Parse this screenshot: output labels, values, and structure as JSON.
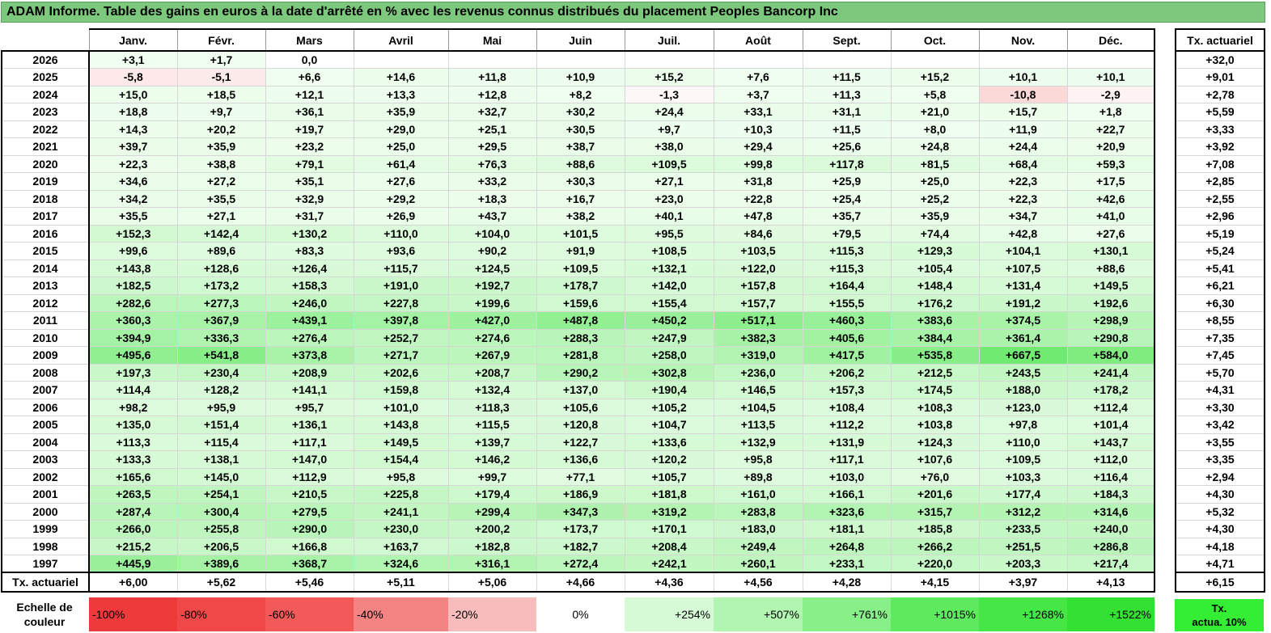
{
  "title": "ADAM Informe. Table des gains en euros à la date d'arrêté en % avec les revenus connus distribués du placement Peoples Bancorp Inc",
  "chart_data": {
    "type": "table",
    "months": [
      "Janv.",
      "Févr.",
      "Mars",
      "Avril",
      "Mai",
      "Juin",
      "Juil.",
      "Août",
      "Sept.",
      "Oct.",
      "Nov.",
      "Déc."
    ],
    "side_header": "Tx. actuariel",
    "rows": [
      {
        "year": "2026",
        "values": [
          "+3,1",
          "+1,7",
          "0,0",
          "",
          "",
          "",
          "",
          "",
          "",
          "",
          "",
          ""
        ],
        "tx": "+32,0"
      },
      {
        "year": "2025",
        "values": [
          "-5,8",
          "-5,1",
          "+6,6",
          "+14,6",
          "+11,8",
          "+10,9",
          "+15,2",
          "+7,6",
          "+11,5",
          "+15,2",
          "+10,1",
          "+10,1"
        ],
        "tx": "+9,01"
      },
      {
        "year": "2024",
        "values": [
          "+15,0",
          "+18,5",
          "+12,1",
          "+13,3",
          "+12,8",
          "+8,2",
          "-1,3",
          "+3,7",
          "+11,3",
          "+5,8",
          "-10,8",
          "-2,9"
        ],
        "tx": "+2,78"
      },
      {
        "year": "2023",
        "values": [
          "+18,8",
          "+9,7",
          "+36,1",
          "+35,9",
          "+32,7",
          "+30,2",
          "+24,4",
          "+33,1",
          "+31,1",
          "+21,0",
          "+15,7",
          "+1,8"
        ],
        "tx": "+5,59"
      },
      {
        "year": "2022",
        "values": [
          "+14,3",
          "+20,2",
          "+19,7",
          "+29,0",
          "+25,1",
          "+30,5",
          "+9,7",
          "+10,3",
          "+11,5",
          "+8,0",
          "+11,9",
          "+22,7"
        ],
        "tx": "+3,33"
      },
      {
        "year": "2021",
        "values": [
          "+39,7",
          "+35,9",
          "+23,2",
          "+25,0",
          "+29,5",
          "+38,7",
          "+38,0",
          "+29,4",
          "+25,6",
          "+24,8",
          "+24,4",
          "+20,9"
        ],
        "tx": "+3,92"
      },
      {
        "year": "2020",
        "values": [
          "+22,3",
          "+38,8",
          "+79,1",
          "+61,4",
          "+76,3",
          "+88,6",
          "+109,5",
          "+99,8",
          "+117,8",
          "+81,5",
          "+68,4",
          "+59,3"
        ],
        "tx": "+7,08"
      },
      {
        "year": "2019",
        "values": [
          "+34,6",
          "+27,2",
          "+35,1",
          "+27,6",
          "+33,2",
          "+30,3",
          "+27,1",
          "+31,8",
          "+25,9",
          "+25,0",
          "+22,3",
          "+17,5"
        ],
        "tx": "+2,85"
      },
      {
        "year": "2018",
        "values": [
          "+34,2",
          "+35,5",
          "+32,9",
          "+29,2",
          "+18,3",
          "+16,7",
          "+23,0",
          "+22,8",
          "+25,4",
          "+25,2",
          "+22,3",
          "+42,6"
        ],
        "tx": "+2,55"
      },
      {
        "year": "2017",
        "values": [
          "+35,5",
          "+27,1",
          "+31,7",
          "+26,9",
          "+43,7",
          "+38,2",
          "+40,1",
          "+47,8",
          "+35,7",
          "+35,9",
          "+34,7",
          "+41,0"
        ],
        "tx": "+2,96"
      },
      {
        "year": "2016",
        "values": [
          "+152,3",
          "+142,4",
          "+130,2",
          "+110,0",
          "+104,0",
          "+101,5",
          "+95,5",
          "+84,6",
          "+79,5",
          "+74,4",
          "+42,8",
          "+27,6"
        ],
        "tx": "+5,19"
      },
      {
        "year": "2015",
        "values": [
          "+99,6",
          "+89,6",
          "+83,3",
          "+93,6",
          "+90,2",
          "+91,9",
          "+108,5",
          "+103,5",
          "+115,3",
          "+129,3",
          "+104,1",
          "+130,1"
        ],
        "tx": "+5,24"
      },
      {
        "year": "2014",
        "values": [
          "+143,8",
          "+128,6",
          "+126,4",
          "+115,7",
          "+124,5",
          "+109,5",
          "+132,1",
          "+122,0",
          "+115,3",
          "+105,4",
          "+107,5",
          "+88,6"
        ],
        "tx": "+5,41"
      },
      {
        "year": "2013",
        "values": [
          "+182,5",
          "+173,2",
          "+158,3",
          "+191,0",
          "+192,7",
          "+178,7",
          "+142,0",
          "+157,8",
          "+164,4",
          "+148,4",
          "+131,4",
          "+149,5"
        ],
        "tx": "+6,21"
      },
      {
        "year": "2012",
        "values": [
          "+282,6",
          "+277,3",
          "+246,0",
          "+227,8",
          "+199,6",
          "+159,6",
          "+155,4",
          "+157,7",
          "+155,5",
          "+176,2",
          "+191,2",
          "+192,6"
        ],
        "tx": "+6,30"
      },
      {
        "year": "2011",
        "values": [
          "+360,3",
          "+367,9",
          "+439,1",
          "+397,8",
          "+427,0",
          "+487,8",
          "+450,2",
          "+517,1",
          "+460,3",
          "+383,6",
          "+374,5",
          "+298,9"
        ],
        "tx": "+8,55"
      },
      {
        "year": "2010",
        "values": [
          "+394,9",
          "+336,3",
          "+276,4",
          "+252,7",
          "+274,6",
          "+288,3",
          "+247,9",
          "+382,3",
          "+405,6",
          "+384,4",
          "+361,4",
          "+290,8"
        ],
        "tx": "+7,35"
      },
      {
        "year": "2009",
        "values": [
          "+495,6",
          "+541,8",
          "+373,8",
          "+271,7",
          "+267,9",
          "+281,8",
          "+258,0",
          "+319,0",
          "+417,5",
          "+535,8",
          "+667,5",
          "+584,0"
        ],
        "tx": "+7,45"
      },
      {
        "year": "2008",
        "values": [
          "+197,3",
          "+230,4",
          "+208,9",
          "+202,6",
          "+208,7",
          "+290,2",
          "+302,8",
          "+236,0",
          "+206,2",
          "+212,5",
          "+243,5",
          "+241,4"
        ],
        "tx": "+5,70"
      },
      {
        "year": "2007",
        "values": [
          "+114,4",
          "+128,2",
          "+141,1",
          "+159,8",
          "+132,4",
          "+137,0",
          "+190,4",
          "+146,5",
          "+157,3",
          "+174,5",
          "+188,0",
          "+178,2"
        ],
        "tx": "+4,31"
      },
      {
        "year": "2006",
        "values": [
          "+98,2",
          "+95,9",
          "+95,7",
          "+101,0",
          "+118,3",
          "+105,6",
          "+105,2",
          "+104,5",
          "+108,4",
          "+108,3",
          "+123,0",
          "+112,4"
        ],
        "tx": "+3,30"
      },
      {
        "year": "2005",
        "values": [
          "+135,0",
          "+151,4",
          "+136,1",
          "+143,8",
          "+115,5",
          "+120,8",
          "+104,7",
          "+113,5",
          "+112,2",
          "+103,8",
          "+97,8",
          "+101,4"
        ],
        "tx": "+3,42"
      },
      {
        "year": "2004",
        "values": [
          "+113,3",
          "+115,4",
          "+117,1",
          "+149,5",
          "+139,7",
          "+122,7",
          "+133,6",
          "+132,9",
          "+131,9",
          "+124,3",
          "+110,0",
          "+143,7"
        ],
        "tx": "+3,55"
      },
      {
        "year": "2003",
        "values": [
          "+133,3",
          "+138,1",
          "+147,0",
          "+154,4",
          "+146,2",
          "+136,6",
          "+120,2",
          "+95,8",
          "+117,1",
          "+107,6",
          "+109,5",
          "+112,0"
        ],
        "tx": "+3,35"
      },
      {
        "year": "2002",
        "values": [
          "+165,6",
          "+145,0",
          "+112,9",
          "+95,8",
          "+99,7",
          "+77,1",
          "+105,7",
          "+89,8",
          "+103,0",
          "+76,0",
          "+103,3",
          "+116,4"
        ],
        "tx": "+2,94"
      },
      {
        "year": "2001",
        "values": [
          "+263,5",
          "+254,1",
          "+210,5",
          "+225,8",
          "+179,4",
          "+186,9",
          "+181,8",
          "+161,0",
          "+166,1",
          "+201,6",
          "+177,4",
          "+184,3"
        ],
        "tx": "+4,30"
      },
      {
        "year": "2000",
        "values": [
          "+287,4",
          "+300,4",
          "+279,5",
          "+241,1",
          "+299,4",
          "+347,3",
          "+319,2",
          "+283,8",
          "+323,6",
          "+315,7",
          "+312,2",
          "+314,6"
        ],
        "tx": "+5,32"
      },
      {
        "year": "1999",
        "values": [
          "+266,0",
          "+255,8",
          "+290,0",
          "+230,0",
          "+200,2",
          "+173,7",
          "+170,1",
          "+183,0",
          "+181,1",
          "+185,8",
          "+233,5",
          "+240,0"
        ],
        "tx": "+4,30"
      },
      {
        "year": "1998",
        "values": [
          "+215,2",
          "+206,5",
          "+166,8",
          "+163,7",
          "+182,8",
          "+182,7",
          "+208,4",
          "+249,4",
          "+264,8",
          "+266,2",
          "+251,5",
          "+286,8"
        ],
        "tx": "+4,18"
      },
      {
        "year": "1997",
        "values": [
          "+445,9",
          "+389,6",
          "+368,7",
          "+324,6",
          "+316,1",
          "+272,4",
          "+242,1",
          "+260,1",
          "+233,1",
          "+220,0",
          "+203,3",
          "+217,4"
        ],
        "tx": "+4,71"
      }
    ],
    "footer": {
      "label": "Tx. actuariel",
      "values": [
        "+6,00",
        "+5,62",
        "+5,46",
        "+5,11",
        "+5,06",
        "+4,66",
        "+4,36",
        "+4,56",
        "+4,28",
        "+4,15",
        "+3,97",
        "+4,13"
      ],
      "tx": "+6,15"
    },
    "scale": {
      "label_line1": "Echelle de",
      "label_line2": "couleur",
      "items": [
        {
          "label": "-100%",
          "color": "#ee3a3a"
        },
        {
          "label": "-80%",
          "color": "#f04848"
        },
        {
          "label": "-60%",
          "color": "#f25a5a"
        },
        {
          "label": "-40%",
          "color": "#f48484"
        },
        {
          "label": "-20%",
          "color": "#f9bcbc"
        },
        {
          "label": "0%",
          "color": "#ffffff"
        },
        {
          "label": "+254%",
          "color": "#d6fad6"
        },
        {
          "label": "+507%",
          "color": "#b0f5b0"
        },
        {
          "label": "+761%",
          "color": "#88f088"
        },
        {
          "label": "+1015%",
          "color": "#5eea5e"
        },
        {
          "label": "+1268%",
          "color": "#45e645"
        },
        {
          "label": "+1522%",
          "color": "#33e033"
        }
      ],
      "tx_line1": "Tx.",
      "tx_line2": "actua. 10%"
    }
  }
}
